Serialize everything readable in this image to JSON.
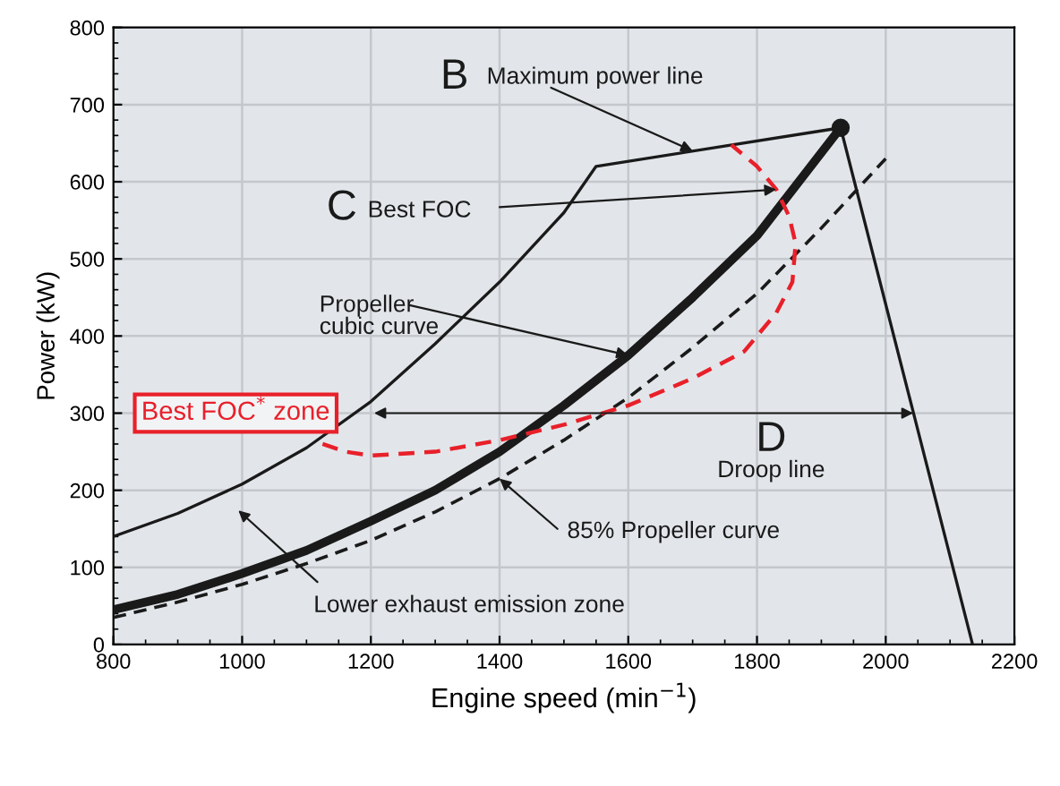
{
  "chart_data": {
    "type": "line",
    "xlabel": "Engine speed (min$^{−1}$)",
    "ylabel": "Power (kW)",
    "xlim": [
      800,
      2200
    ],
    "ylim": [
      0,
      800
    ],
    "xticks": [
      800,
      1000,
      1200,
      1400,
      1600,
      1800,
      2000,
      2200
    ],
    "yticks": [
      0,
      100,
      200,
      300,
      400,
      500,
      600,
      700,
      800
    ],
    "grid": true,
    "series": [
      {
        "color": "#1a1a1a",
        "line_style": "solid",
        "x": [
          800,
          900,
          1000,
          1100,
          1200,
          1300,
          1400,
          1500,
          1550,
          1930,
          2135
        ],
        "values": [
          140,
          170,
          208,
          255,
          315,
          390,
          470,
          560,
          620,
          670,
          0
        ]
      },
      {
        "color": "#1a1a1a",
        "line_style": "solid",
        "x": [
          800,
          900,
          1000,
          1100,
          1200,
          1300,
          1400,
          1500,
          1600,
          1700,
          1800,
          1930
        ],
        "values": [
          45,
          65,
          92,
          122,
          160,
          200,
          250,
          310,
          375,
          450,
          530,
          670
        ]
      },
      {
        "color": "#1a1a1a",
        "line_style": "dashed",
        "x": [
          800,
          900,
          1000,
          1100,
          1200,
          1300,
          1400,
          1500,
          1600,
          1700,
          1800,
          1900,
          2000
        ],
        "values": [
          35,
          55,
          78,
          105,
          135,
          172,
          215,
          265,
          320,
          385,
          455,
          540,
          630
        ]
      },
      {
        "color": "#e8202a",
        "line_style": "dashed",
        "x": [
          1125,
          1160,
          1200,
          1300,
          1400,
          1500,
          1600,
          1700,
          1780,
          1830,
          1855,
          1860,
          1850,
          1830,
          1800,
          1760
        ],
        "values": [
          260,
          250,
          245,
          250,
          265,
          285,
          310,
          345,
          380,
          430,
          470,
          520,
          555,
          590,
          620,
          648
        ]
      },
      {
        "type": "scatter",
        "color": "#1a1a1a",
        "marker": "circle",
        "x": [
          1930
        ],
        "values": [
          670
        ]
      }
    ],
    "annotations": [
      "B",
      {
        "text": "Maximum power line",
        "x": 1700,
        "y": 640
      },
      "C",
      {
        "text": "Best FOC",
        "x": 1830,
        "y": 590
      },
      {
        "text": "Propeller\ncubic curve",
        "x": 1600,
        "y": 375
      },
      "Best FOC$^{*}$ zone",
      "D",
      "Droop line",
      {
        "text": "85% Propeller curve",
        "x": 1400,
        "y": 215
      },
      "Lower exhaust emission zone"
    ]
  }
}
